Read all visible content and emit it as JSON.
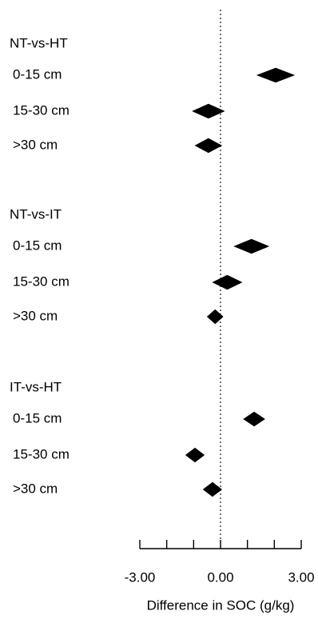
{
  "chart_data": {
    "type": "forest",
    "groups": [
      {
        "label": "NT-vs-HT",
        "rows": [
          {
            "label": "0-15 cm",
            "estimate": 2.05,
            "ci": [
              1.35,
              2.75
            ]
          },
          {
            "label": "15-30 cm",
            "estimate": -0.45,
            "ci": [
              -1.05,
              0.15
            ]
          },
          {
            "label": ">30 cm",
            "estimate": -0.45,
            "ci": [
              -0.95,
              0.05
            ]
          }
        ]
      },
      {
        "label": "NT-vs-IT",
        "rows": [
          {
            "label": "0-15 cm",
            "estimate": 1.15,
            "ci": [
              0.5,
              1.8
            ]
          },
          {
            "label": "15-30 cm",
            "estimate": 0.25,
            "ci": [
              -0.3,
              0.8
            ]
          },
          {
            "label": ">30 cm",
            "estimate": -0.2,
            "ci": [
              -0.5,
              0.1
            ]
          }
        ]
      },
      {
        "label": "IT-vs-HT",
        "rows": [
          {
            "label": "0-15 cm",
            "estimate": 1.25,
            "ci": [
              0.85,
              1.65
            ]
          },
          {
            "label": "15-30 cm",
            "estimate": -0.95,
            "ci": [
              -1.3,
              -0.6
            ]
          },
          {
            "label": ">30 cm",
            "estimate": -0.3,
            "ci": [
              -0.65,
              0.05
            ]
          }
        ]
      }
    ],
    "x_ticks": [
      -3,
      -2,
      -1,
      0,
      1,
      2,
      3
    ],
    "x_tick_labels": [
      "-3.00",
      "",
      "",
      "0.00",
      "",
      "",
      "3.00"
    ],
    "xlabel": "Difference in SOC (g/kg)",
    "xlim": [
      -3,
      3
    ],
    "reference_line": 0,
    "grid": false,
    "marker_color": "#000000",
    "axis_color": "#000000",
    "reference_line_color": "#000000"
  }
}
